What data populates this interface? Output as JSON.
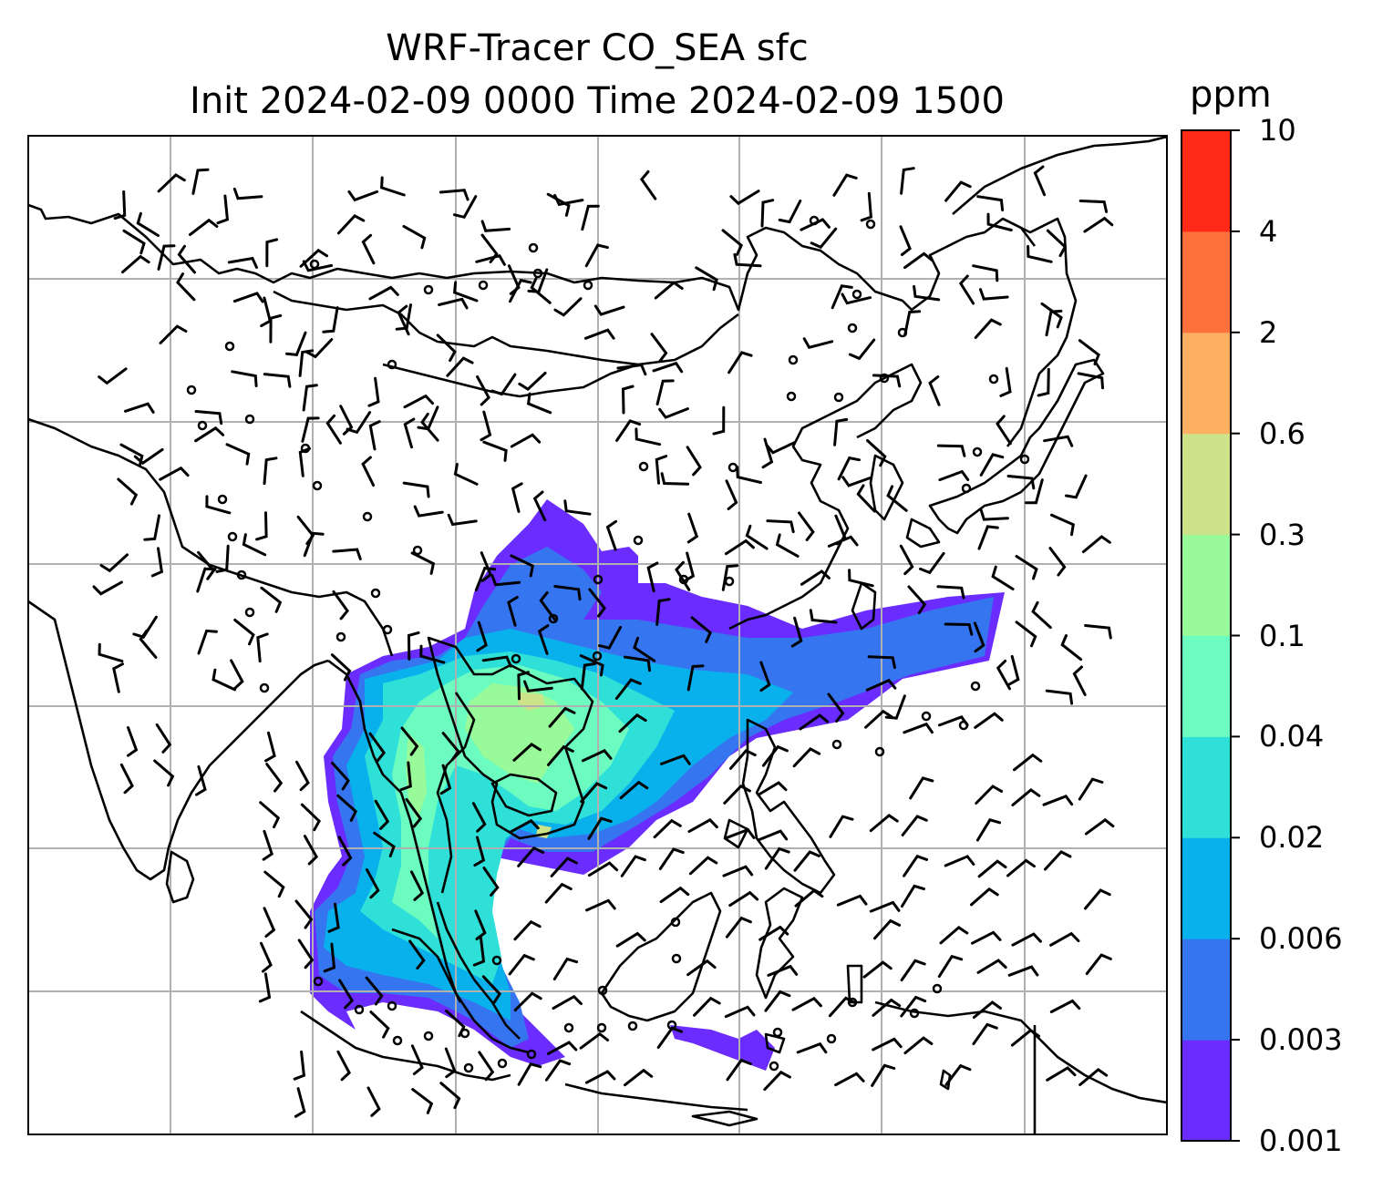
{
  "title_line1": "WRF-Tracer CO_SEA sfc",
  "title_line2": "Init 2024-02-09 0000 Time 2024-02-09 1500",
  "colorbar": {
    "units": "ppm",
    "ticks": [
      "0.001",
      "0.003",
      "0.006",
      "0.02",
      "0.04",
      "0.1",
      "0.3",
      "0.6",
      "2",
      "4",
      "10"
    ],
    "colors": [
      "#6a2cff",
      "#3575f0",
      "#08b0ec",
      "#2fe0d8",
      "#6cfcc0",
      "#98fa98",
      "#cde389",
      "#fdb062",
      "#ff713c",
      "#fe2a17"
    ]
  },
  "map": {
    "land_outline_color": "#000000",
    "gridline_color": "#b0b0b0",
    "wind_barb_color": "#000000",
    "field": "CO_SEA surface tracer concentration",
    "plume_levels_ppm": [
      0.001,
      0.003,
      0.006,
      0.02,
      0.04,
      0.1,
      0.3
    ]
  }
}
